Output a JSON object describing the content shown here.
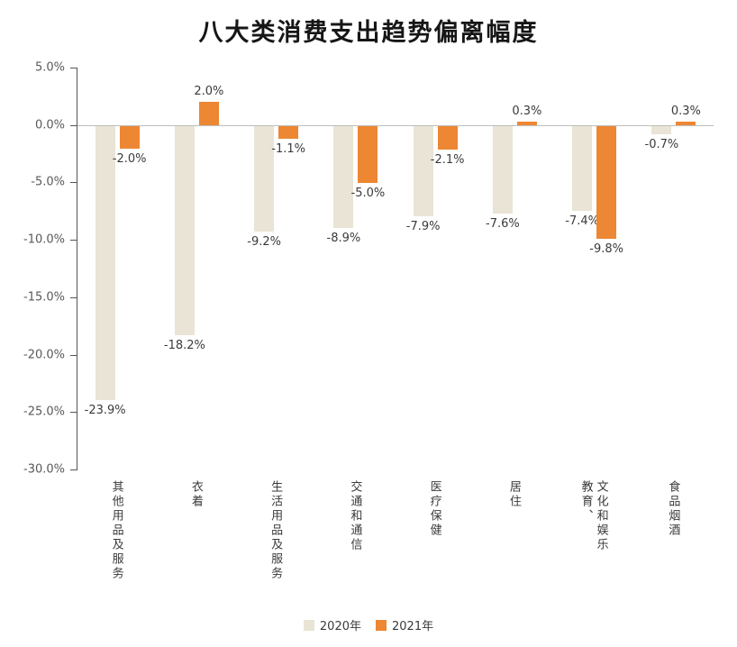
{
  "chart_data": {
    "type": "bar",
    "title": "八大类消费支出趋势偏离幅度",
    "categories": [
      "其他用品及服务",
      "衣着",
      "生活用品及服务",
      "交通和通信",
      "医疗保健",
      "居住",
      "教育、\n文化和娱乐",
      "食品烟酒"
    ],
    "series": [
      {
        "name": "2020年",
        "color": "#e9e4d5",
        "values": [
          -23.9,
          -18.2,
          -9.2,
          -8.9,
          -7.9,
          -7.6,
          -7.4,
          -0.7
        ]
      },
      {
        "name": "2021年",
        "color": "#ed8733",
        "values": [
          -2.0,
          2.0,
          -1.1,
          -5.0,
          -2.1,
          0.3,
          -9.8,
          0.3
        ]
      }
    ],
    "y_ticks": [
      5.0,
      0.0,
      -5.0,
      -10.0,
      -15.0,
      -20.0,
      -25.0,
      -30.0
    ],
    "ylim": [
      -30,
      5
    ],
    "grid": false,
    "legend_position": "bottom",
    "data_labels": true,
    "value_suffix": "%"
  }
}
